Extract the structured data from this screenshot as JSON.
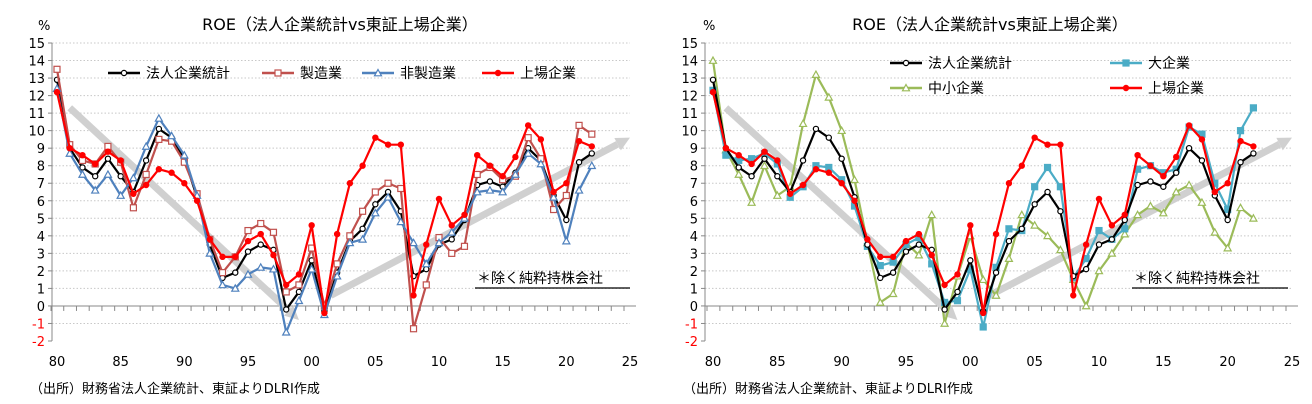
{
  "source_note": "（出所）財務省法人企業統計、東証よりDLRI作成",
  "chart_data": [
    {
      "type": "line",
      "title": "ROE（法人企業統計vs東証上場企業）",
      "ylabel": "%",
      "ylim": [
        -2,
        15
      ],
      "xlim": [
        1980,
        2025
      ],
      "x_tick_labels": [
        "80",
        "85",
        "90",
        "95",
        "00",
        "05",
        "10",
        "15",
        "20",
        "25"
      ],
      "x_ticks": [
        1980,
        1985,
        1990,
        1995,
        2000,
        2005,
        2010,
        2015,
        2020,
        2025
      ],
      "y_ticks": [
        -2,
        -1,
        0,
        1,
        2,
        3,
        4,
        5,
        6,
        7,
        8,
        9,
        10,
        11,
        12,
        13,
        14,
        15
      ],
      "grid": true,
      "legend_position": "top",
      "annotation": "＊除く純粋持株会社",
      "trend_arrows": [
        {
          "from": [
            1981,
            11.3
          ],
          "to": [
            1999,
            -0.8
          ],
          "color": "#d0d0d0"
        },
        {
          "from": [
            2001.5,
            0.6
          ],
          "to": [
            2025,
            9.6
          ],
          "color": "#d0d0d0"
        }
      ],
      "x": [
        1980,
        1981,
        1982,
        1983,
        1984,
        1985,
        1986,
        1987,
        1988,
        1989,
        1990,
        1991,
        1992,
        1993,
        1994,
        1995,
        1996,
        1997,
        1998,
        1999,
        2000,
        2001,
        2002,
        2003,
        2004,
        2005,
        2006,
        2007,
        2008,
        2009,
        2010,
        2011,
        2012,
        2013,
        2014,
        2015,
        2016,
        2017,
        2018,
        2019,
        2020,
        2021,
        2022
      ],
      "series": [
        {
          "name": "法人企業統計",
          "color": "#000000",
          "marker": "circle-open",
          "values": [
            12.9,
            9.0,
            7.9,
            7.4,
            8.4,
            7.4,
            6.5,
            8.3,
            10.1,
            9.6,
            8.4,
            6.2,
            3.5,
            1.6,
            1.9,
            3.1,
            3.5,
            3.2,
            -0.2,
            0.8,
            2.6,
            -0.3,
            1.9,
            3.7,
            4.4,
            5.8,
            6.5,
            5.4,
            1.7,
            2.1,
            3.5,
            3.8,
            4.9,
            6.9,
            7.1,
            6.8,
            7.6,
            9.0,
            8.3,
            6.3,
            4.9,
            8.2,
            8.7
          ]
        },
        {
          "name": "製造業",
          "color": "#c0504d",
          "marker": "square-open",
          "values": [
            13.5,
            9.2,
            8.3,
            8.1,
            9.1,
            8.2,
            5.6,
            7.5,
            9.5,
            9.4,
            8.2,
            6.4,
            3.8,
            1.9,
            2.8,
            4.3,
            4.7,
            4.2,
            0.8,
            1.2,
            3.3,
            0.0,
            2.4,
            4.0,
            5.4,
            6.5,
            7.0,
            6.7,
            -1.3,
            1.2,
            3.9,
            3.0,
            3.4,
            7.5,
            7.9,
            7.2,
            7.4,
            9.6,
            8.4,
            5.5,
            6.3,
            10.3,
            9.8
          ]
        },
        {
          "name": "非製造業",
          "color": "#4f81bd",
          "marker": "triangle-open",
          "values": [
            12.4,
            8.7,
            7.5,
            6.6,
            7.5,
            6.3,
            7.3,
            9.1,
            10.7,
            9.7,
            8.6,
            6.3,
            3.0,
            1.2,
            1.0,
            1.8,
            2.2,
            2.1,
            -1.5,
            0.3,
            2.1,
            -0.5,
            1.7,
            3.6,
            3.8,
            5.3,
            6.2,
            4.8,
            3.6,
            2.4,
            3.6,
            4.2,
            5.0,
            6.5,
            6.6,
            6.5,
            7.5,
            8.7,
            8.1,
            6.2,
            3.7,
            6.6,
            8.0
          ]
        },
        {
          "name": "上場企業",
          "color": "#ff0000",
          "marker": "circle-filled",
          "values": [
            12.2,
            9.0,
            8.6,
            8.1,
            8.8,
            8.3,
            6.4,
            6.9,
            7.8,
            7.6,
            7.0,
            6.0,
            3.8,
            2.8,
            2.8,
            3.7,
            4.1,
            2.9,
            1.2,
            1.8,
            4.6,
            -0.4,
            4.1,
            7.0,
            8.0,
            9.6,
            9.2,
            9.2,
            0.6,
            3.5,
            6.1,
            4.6,
            5.2,
            8.6,
            8.0,
            7.4,
            8.5,
            10.3,
            9.5,
            6.5,
            7.0,
            9.4,
            9.1
          ]
        }
      ]
    },
    {
      "type": "line",
      "title": "ROE（法人企業統計vs東証上場企業）",
      "ylabel": "%",
      "ylim": [
        -2,
        15
      ],
      "xlim": [
        1980,
        2025
      ],
      "x_tick_labels": [
        "80",
        "85",
        "90",
        "95",
        "00",
        "05",
        "10",
        "15",
        "20",
        "25"
      ],
      "x_ticks": [
        1980,
        1985,
        1990,
        1995,
        2000,
        2005,
        2010,
        2015,
        2020,
        2025
      ],
      "y_ticks": [
        -2,
        -1,
        0,
        1,
        2,
        3,
        4,
        5,
        6,
        7,
        8,
        9,
        10,
        11,
        12,
        13,
        14,
        15
      ],
      "grid": true,
      "legend_position": "top-right",
      "annotation": "＊除く純粋持株会社",
      "trend_arrows": [
        {
          "from": [
            1981,
            11.3
          ],
          "to": [
            1999,
            -0.8
          ],
          "color": "#d0d0d0"
        },
        {
          "from": [
            2001.5,
            0.6
          ],
          "to": [
            2025,
            9.6
          ],
          "color": "#d0d0d0"
        }
      ],
      "x": [
        1980,
        1981,
        1982,
        1983,
        1984,
        1985,
        1986,
        1987,
        1988,
        1989,
        1990,
        1991,
        1992,
        1993,
        1994,
        1995,
        1996,
        1997,
        1998,
        1999,
        2000,
        2001,
        2002,
        2003,
        2004,
        2005,
        2006,
        2007,
        2008,
        2009,
        2010,
        2011,
        2012,
        2013,
        2014,
        2015,
        2016,
        2017,
        2018,
        2019,
        2020,
        2021,
        2022
      ],
      "series": [
        {
          "name": "中小企業",
          "color": "#9bbb59",
          "marker": "triangle-open",
          "values": [
            14.0,
            8.9,
            7.5,
            5.9,
            8.0,
            6.3,
            6.8,
            10.4,
            13.2,
            11.9,
            10.0,
            7.2,
            3.6,
            0.2,
            0.7,
            3.6,
            2.9,
            5.2,
            -1.0,
            1.7,
            4.0,
            1.5,
            0.6,
            2.7,
            5.2,
            4.6,
            4.0,
            3.2,
            1.5,
            0.0,
            2.0,
            3.0,
            4.1,
            5.2,
            5.7,
            5.3,
            6.5,
            6.9,
            5.9,
            4.2,
            3.3,
            5.6,
            5.0
          ]
        },
        {
          "name": "大企業",
          "color": "#4bacc6",
          "marker": "square-filled",
          "values": [
            12.3,
            8.6,
            8.3,
            8.4,
            8.7,
            8.1,
            6.2,
            6.8,
            8.0,
            7.9,
            7.2,
            5.7,
            3.4,
            2.3,
            2.5,
            3.5,
            3.9,
            2.4,
            0.2,
            0.3,
            2.1,
            -1.2,
            2.2,
            4.4,
            4.3,
            6.8,
            7.9,
            6.8,
            1.6,
            2.7,
            4.3,
            3.8,
            4.4,
            7.8,
            8.0,
            7.6,
            7.8,
            10.2,
            9.8,
            7.0,
            5.5,
            10.0,
            11.3
          ]
        },
        {
          "name": "法人企業統計",
          "color": "#000000",
          "marker": "circle-open",
          "values": [
            12.9,
            9.0,
            7.9,
            7.4,
            8.4,
            7.4,
            6.5,
            8.3,
            10.1,
            9.6,
            8.4,
            6.2,
            3.5,
            1.6,
            1.9,
            3.1,
            3.5,
            3.2,
            -0.2,
            0.8,
            2.6,
            -0.3,
            1.9,
            3.7,
            4.4,
            5.8,
            6.5,
            5.4,
            1.7,
            2.1,
            3.5,
            3.8,
            4.9,
            6.9,
            7.1,
            6.8,
            7.6,
            9.0,
            8.3,
            6.3,
            4.9,
            8.2,
            8.7
          ]
        },
        {
          "name": "上場企業",
          "color": "#ff0000",
          "marker": "circle-filled",
          "values": [
            12.2,
            9.0,
            8.6,
            8.1,
            8.8,
            8.3,
            6.4,
            6.9,
            7.8,
            7.6,
            7.0,
            6.0,
            3.8,
            2.8,
            2.8,
            3.7,
            4.1,
            2.9,
            1.2,
            1.8,
            4.6,
            -0.4,
            4.1,
            7.0,
            8.0,
            9.6,
            9.2,
            9.2,
            0.6,
            3.5,
            6.1,
            4.6,
            5.2,
            8.6,
            8.0,
            7.4,
            8.5,
            10.3,
            9.5,
            6.5,
            7.0,
            9.4,
            9.1
          ]
        }
      ],
      "legend_order": [
        "法人企業統計",
        "大企業",
        "中小企業",
        "上場企業"
      ]
    }
  ]
}
